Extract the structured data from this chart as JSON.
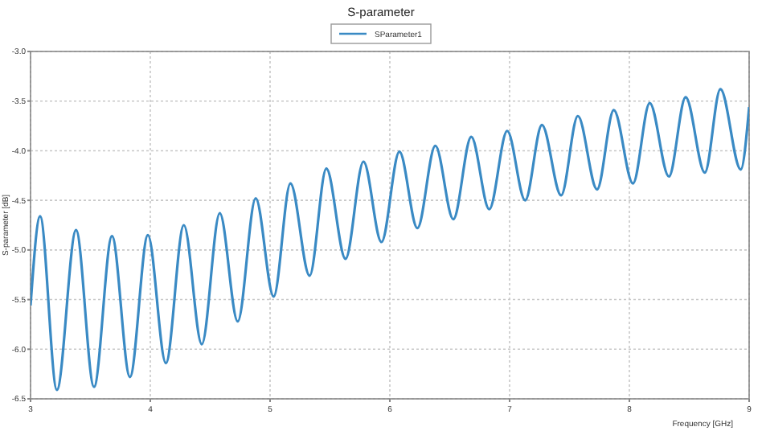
{
  "chart_data": {
    "type": "line",
    "title": "S-parameter",
    "xlabel": "Frequency [GHz]",
    "ylabel": "S-parameter [dB]",
    "xlim": [
      3,
      9
    ],
    "xticks": [
      3,
      4,
      5,
      6,
      7,
      8,
      9
    ],
    "ylim": [
      -6.5,
      -3
    ],
    "yticks": [
      {
        "value": -6.5,
        "label": "-6.5"
      },
      {
        "value": -6,
        "label": "-6.0"
      },
      {
        "value": -5.5,
        "label": "-5.5"
      },
      {
        "value": -5,
        "label": "-5.0"
      },
      {
        "value": -4.5,
        "label": "-4.5"
      },
      {
        "value": -4,
        "label": "-4.0"
      },
      {
        "value": -3.5,
        "label": "-3.5"
      },
      {
        "value": -3,
        "label": "-3.0"
      }
    ],
    "grid": true,
    "legend": "top",
    "marker": "none",
    "line_style": "solid",
    "x": [
      3.0,
      3.08,
      3.22,
      3.38,
      3.53,
      3.68,
      3.83,
      3.98,
      4.13,
      4.28,
      4.43,
      4.58,
      4.73,
      4.88,
      5.03,
      5.17,
      5.33,
      5.47,
      5.63,
      5.78,
      5.93,
      6.08,
      6.23,
      6.38,
      6.53,
      6.68,
      6.83,
      6.98,
      7.13,
      7.27,
      7.43,
      7.57,
      7.73,
      7.87,
      8.03,
      8.17,
      8.33,
      8.47,
      8.63,
      8.76,
      8.93,
      9.0
    ],
    "series": [
      {
        "name": "SParameter1",
        "color": "#3a8ac4",
        "values": [
          -5.56,
          -4.66,
          -6.41,
          -4.8,
          -6.38,
          -4.86,
          -6.28,
          -4.85,
          -6.14,
          -4.75,
          -5.95,
          -4.63,
          -5.72,
          -4.48,
          -5.47,
          -4.33,
          -5.26,
          -4.18,
          -5.09,
          -4.11,
          -4.92,
          -4.01,
          -4.78,
          -3.95,
          -4.69,
          -3.86,
          -4.59,
          -3.8,
          -4.5,
          -3.74,
          -4.45,
          -3.65,
          -4.39,
          -3.59,
          -4.33,
          -3.52,
          -4.26,
          -3.46,
          -4.22,
          -3.38,
          -4.19,
          -3.56
        ]
      }
    ]
  }
}
